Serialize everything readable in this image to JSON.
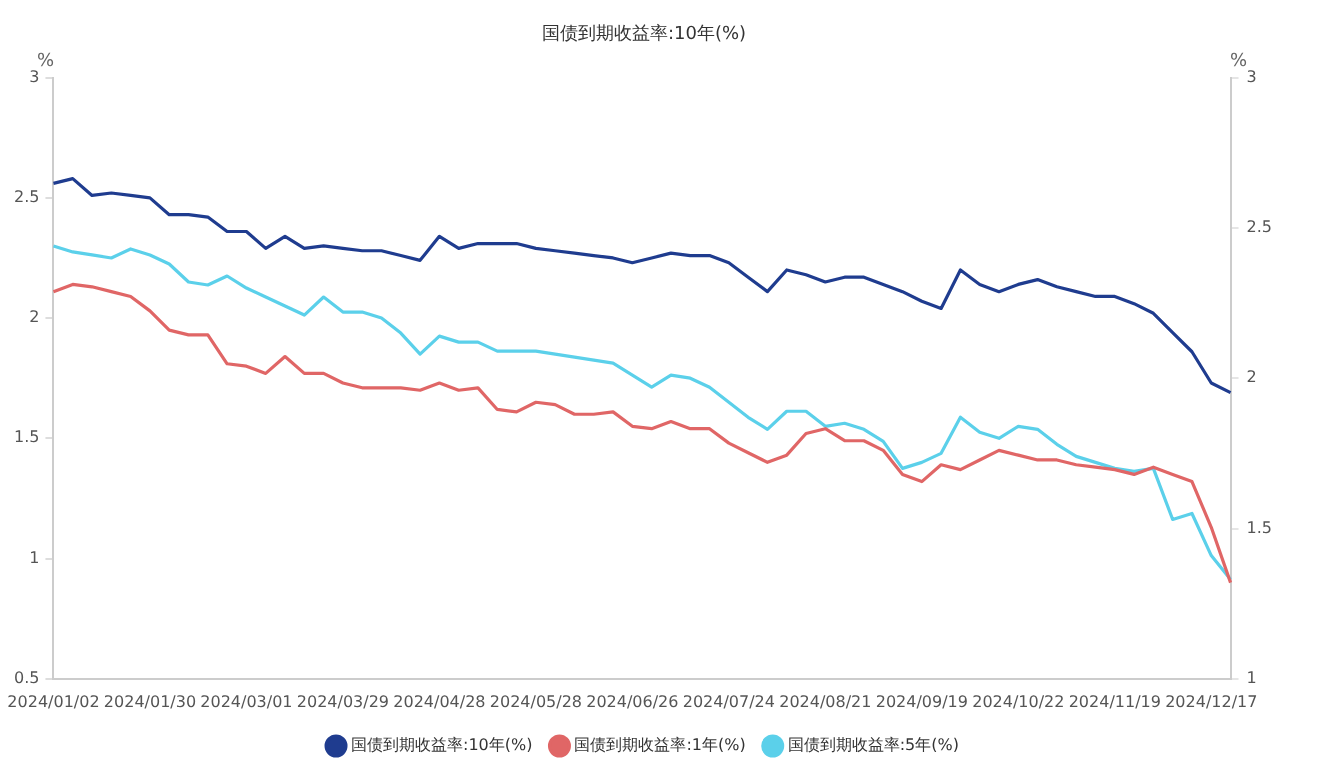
{
  "chart_data": {
    "type": "line",
    "title": "国债到期收益率:10年(%)",
    "ylabel": "%",
    "y2label": "%",
    "categories": [
      "2024/01/02",
      null,
      null,
      null,
      null,
      "2024/01/30",
      null,
      null,
      null,
      null,
      "2024/03/01",
      null,
      null,
      null,
      null,
      "2024/03/29",
      null,
      null,
      null,
      null,
      "2024/04/28",
      null,
      null,
      null,
      null,
      "2024/05/28",
      null,
      null,
      null,
      null,
      "2024/06/26",
      null,
      null,
      null,
      null,
      "2024/07/24",
      null,
      null,
      null,
      null,
      "2024/08/21",
      null,
      null,
      null,
      null,
      "2024/09/19",
      null,
      null,
      null,
      null,
      "2024/10/22",
      null,
      null,
      null,
      null,
      "2024/11/19",
      null,
      null,
      null,
      null,
      "2024/12/17",
      null
    ],
    "series": [
      {
        "name": "国债到期收益率:10年(%)",
        "color": "#1f3c8f",
        "values": [
          2.56,
          2.58,
          2.51,
          2.52,
          2.51,
          2.5,
          2.43,
          2.43,
          2.42,
          2.36,
          2.36,
          2.29,
          2.34,
          2.29,
          2.3,
          2.29,
          2.28,
          2.28,
          2.26,
          2.24,
          2.34,
          2.29,
          2.31,
          2.31,
          2.31,
          2.29,
          2.28,
          2.27,
          2.26,
          2.25,
          2.23,
          2.25,
          2.27,
          2.26,
          2.26,
          2.23,
          2.17,
          2.11,
          2.2,
          2.18,
          2.15,
          2.17,
          2.17,
          2.14,
          2.11,
          2.07,
          2.04,
          2.2,
          2.14,
          2.11,
          2.14,
          2.16,
          2.13,
          2.11,
          2.09,
          2.09,
          2.06,
          2.02,
          1.94,
          1.86,
          1.73,
          1.69
        ]
      },
      {
        "name": "国债到期收益率:1年(%)",
        "color": "#e06666",
        "values": [
          2.11,
          2.14,
          2.13,
          2.11,
          2.09,
          2.03,
          1.95,
          1.93,
          1.93,
          1.81,
          1.8,
          1.77,
          1.84,
          1.77,
          1.77,
          1.73,
          1.71,
          1.71,
          1.71,
          1.7,
          1.73,
          1.7,
          1.71,
          1.62,
          1.61,
          1.65,
          1.64,
          1.6,
          1.6,
          1.61,
          1.55,
          1.54,
          1.57,
          1.54,
          1.54,
          1.48,
          1.44,
          1.4,
          1.43,
          1.52,
          1.54,
          1.49,
          1.49,
          1.45,
          1.35,
          1.32,
          1.39,
          1.37,
          1.41,
          1.45,
          1.43,
          1.41,
          1.41,
          1.39,
          1.38,
          1.37,
          1.35,
          1.38,
          1.35,
          1.32,
          1.13,
          0.9
        ]
      },
      {
        "name": "国债到期收益率:5年(%)",
        "color": "#5bd0ea",
        "axis": "y2",
        "values": [
          2.44,
          2.42,
          2.41,
          2.4,
          2.43,
          2.41,
          2.38,
          2.32,
          2.31,
          2.34,
          2.3,
          2.27,
          2.24,
          2.21,
          2.27,
          2.22,
          2.22,
          2.2,
          2.15,
          2.08,
          2.14,
          2.12,
          2.12,
          2.09,
          2.09,
          2.09,
          2.08,
          2.07,
          2.06,
          2.05,
          2.01,
          1.97,
          2.01,
          2.0,
          1.97,
          1.92,
          1.87,
          1.83,
          1.89,
          1.89,
          1.84,
          1.85,
          1.83,
          1.79,
          1.7,
          1.72,
          1.75,
          1.87,
          1.82,
          1.8,
          1.84,
          1.83,
          1.78,
          1.74,
          1.72,
          1.7,
          1.69,
          1.7,
          1.53,
          1.55,
          1.41,
          1.33
        ]
      }
    ],
    "ylim": [
      0.5,
      3
    ],
    "yticks": [
      0.5,
      1,
      1.5,
      2,
      2.5,
      3
    ],
    "y2lim": [
      1,
      3
    ],
    "y2ticks": [
      1,
      1.5,
      2,
      2.5,
      3
    ],
    "grid": false,
    "legend": "bottom",
    "marker": "none",
    "line_style": "solid"
  }
}
